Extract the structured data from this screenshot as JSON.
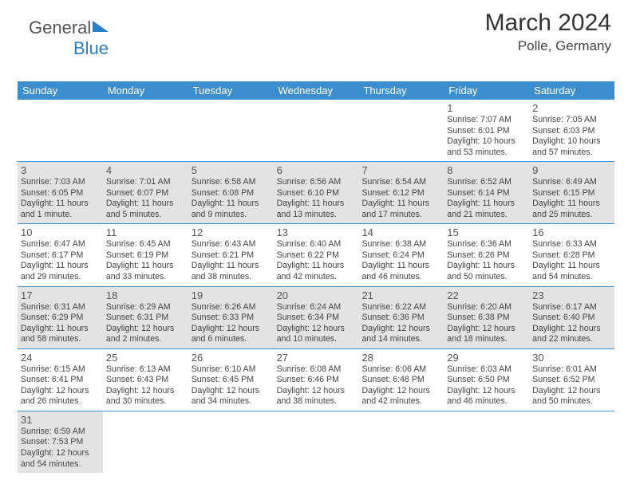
{
  "brand": {
    "part1": "General",
    "part2": "Blue",
    "flag_color": "#2d7fc4"
  },
  "header": {
    "month": "March 2024",
    "location": "Polle, Germany"
  },
  "dayNames": [
    "Sunday",
    "Monday",
    "Tuesday",
    "Wednesday",
    "Thursday",
    "Friday",
    "Saturday"
  ],
  "colors": {
    "header_bg": "#3c8ecf",
    "header_fg": "#ffffff",
    "grey": "#e3e3e3",
    "rule": "#3c8ecf"
  },
  "weeks": [
    [
      {
        "blank": true
      },
      {
        "blank": true
      },
      {
        "blank": true
      },
      {
        "blank": true
      },
      {
        "blank": true
      },
      {
        "day": "1",
        "sunrise": "Sunrise: 7:07 AM",
        "sunset": "Sunset: 6:01 PM",
        "daylight": "Daylight: 10 hours and 53 minutes."
      },
      {
        "day": "2",
        "sunrise": "Sunrise: 7:05 AM",
        "sunset": "Sunset: 6:03 PM",
        "daylight": "Daylight: 10 hours and 57 minutes."
      }
    ],
    [
      {
        "day": "3",
        "grey": true,
        "sunrise": "Sunrise: 7:03 AM",
        "sunset": "Sunset: 6:05 PM",
        "daylight": "Daylight: 11 hours and 1 minute."
      },
      {
        "day": "4",
        "grey": true,
        "sunrise": "Sunrise: 7:01 AM",
        "sunset": "Sunset: 6:07 PM",
        "daylight": "Daylight: 11 hours and 5 minutes."
      },
      {
        "day": "5",
        "grey": true,
        "sunrise": "Sunrise: 6:58 AM",
        "sunset": "Sunset: 6:08 PM",
        "daylight": "Daylight: 11 hours and 9 minutes."
      },
      {
        "day": "6",
        "grey": true,
        "sunrise": "Sunrise: 6:56 AM",
        "sunset": "Sunset: 6:10 PM",
        "daylight": "Daylight: 11 hours and 13 minutes."
      },
      {
        "day": "7",
        "grey": true,
        "sunrise": "Sunrise: 6:54 AM",
        "sunset": "Sunset: 6:12 PM",
        "daylight": "Daylight: 11 hours and 17 minutes."
      },
      {
        "day": "8",
        "grey": true,
        "sunrise": "Sunrise: 6:52 AM",
        "sunset": "Sunset: 6:14 PM",
        "daylight": "Daylight: 11 hours and 21 minutes."
      },
      {
        "day": "9",
        "grey": true,
        "sunrise": "Sunrise: 6:49 AM",
        "sunset": "Sunset: 6:15 PM",
        "daylight": "Daylight: 11 hours and 25 minutes."
      }
    ],
    [
      {
        "day": "10",
        "sunrise": "Sunrise: 6:47 AM",
        "sunset": "Sunset: 6:17 PM",
        "daylight": "Daylight: 11 hours and 29 minutes."
      },
      {
        "day": "11",
        "sunrise": "Sunrise: 6:45 AM",
        "sunset": "Sunset: 6:19 PM",
        "daylight": "Daylight: 11 hours and 33 minutes."
      },
      {
        "day": "12",
        "sunrise": "Sunrise: 6:43 AM",
        "sunset": "Sunset: 6:21 PM",
        "daylight": "Daylight: 11 hours and 38 minutes."
      },
      {
        "day": "13",
        "sunrise": "Sunrise: 6:40 AM",
        "sunset": "Sunset: 6:22 PM",
        "daylight": "Daylight: 11 hours and 42 minutes."
      },
      {
        "day": "14",
        "sunrise": "Sunrise: 6:38 AM",
        "sunset": "Sunset: 6:24 PM",
        "daylight": "Daylight: 11 hours and 46 minutes."
      },
      {
        "day": "15",
        "sunrise": "Sunrise: 6:36 AM",
        "sunset": "Sunset: 6:26 PM",
        "daylight": "Daylight: 11 hours and 50 minutes."
      },
      {
        "day": "16",
        "sunrise": "Sunrise: 6:33 AM",
        "sunset": "Sunset: 6:28 PM",
        "daylight": "Daylight: 11 hours and 54 minutes."
      }
    ],
    [
      {
        "day": "17",
        "grey": true,
        "sunrise": "Sunrise: 6:31 AM",
        "sunset": "Sunset: 6:29 PM",
        "daylight": "Daylight: 11 hours and 58 minutes."
      },
      {
        "day": "18",
        "grey": true,
        "sunrise": "Sunrise: 6:29 AM",
        "sunset": "Sunset: 6:31 PM",
        "daylight": "Daylight: 12 hours and 2 minutes."
      },
      {
        "day": "19",
        "grey": true,
        "sunrise": "Sunrise: 6:26 AM",
        "sunset": "Sunset: 6:33 PM",
        "daylight": "Daylight: 12 hours and 6 minutes."
      },
      {
        "day": "20",
        "grey": true,
        "sunrise": "Sunrise: 6:24 AM",
        "sunset": "Sunset: 6:34 PM",
        "daylight": "Daylight: 12 hours and 10 minutes."
      },
      {
        "day": "21",
        "grey": true,
        "sunrise": "Sunrise: 6:22 AM",
        "sunset": "Sunset: 6:36 PM",
        "daylight": "Daylight: 12 hours and 14 minutes."
      },
      {
        "day": "22",
        "grey": true,
        "sunrise": "Sunrise: 6:20 AM",
        "sunset": "Sunset: 6:38 PM",
        "daylight": "Daylight: 12 hours and 18 minutes."
      },
      {
        "day": "23",
        "grey": true,
        "sunrise": "Sunrise: 6:17 AM",
        "sunset": "Sunset: 6:40 PM",
        "daylight": "Daylight: 12 hours and 22 minutes."
      }
    ],
    [
      {
        "day": "24",
        "sunrise": "Sunrise: 6:15 AM",
        "sunset": "Sunset: 6:41 PM",
        "daylight": "Daylight: 12 hours and 26 minutes."
      },
      {
        "day": "25",
        "sunrise": "Sunrise: 6:13 AM",
        "sunset": "Sunset: 6:43 PM",
        "daylight": "Daylight: 12 hours and 30 minutes."
      },
      {
        "day": "26",
        "sunrise": "Sunrise: 6:10 AM",
        "sunset": "Sunset: 6:45 PM",
        "daylight": "Daylight: 12 hours and 34 minutes."
      },
      {
        "day": "27",
        "sunrise": "Sunrise: 6:08 AM",
        "sunset": "Sunset: 6:46 PM",
        "daylight": "Daylight: 12 hours and 38 minutes."
      },
      {
        "day": "28",
        "sunrise": "Sunrise: 6:06 AM",
        "sunset": "Sunset: 6:48 PM",
        "daylight": "Daylight: 12 hours and 42 minutes."
      },
      {
        "day": "29",
        "sunrise": "Sunrise: 6:03 AM",
        "sunset": "Sunset: 6:50 PM",
        "daylight": "Daylight: 12 hours and 46 minutes."
      },
      {
        "day": "30",
        "sunrise": "Sunrise: 6:01 AM",
        "sunset": "Sunset: 6:52 PM",
        "daylight": "Daylight: 12 hours and 50 minutes."
      }
    ],
    [
      {
        "day": "31",
        "grey": true,
        "sunrise": "Sunrise: 6:59 AM",
        "sunset": "Sunset: 7:53 PM",
        "daylight": "Daylight: 12 hours and 54 minutes."
      },
      {
        "blank": true
      },
      {
        "blank": true
      },
      {
        "blank": true
      },
      {
        "blank": true
      },
      {
        "blank": true
      },
      {
        "blank": true
      }
    ]
  ]
}
